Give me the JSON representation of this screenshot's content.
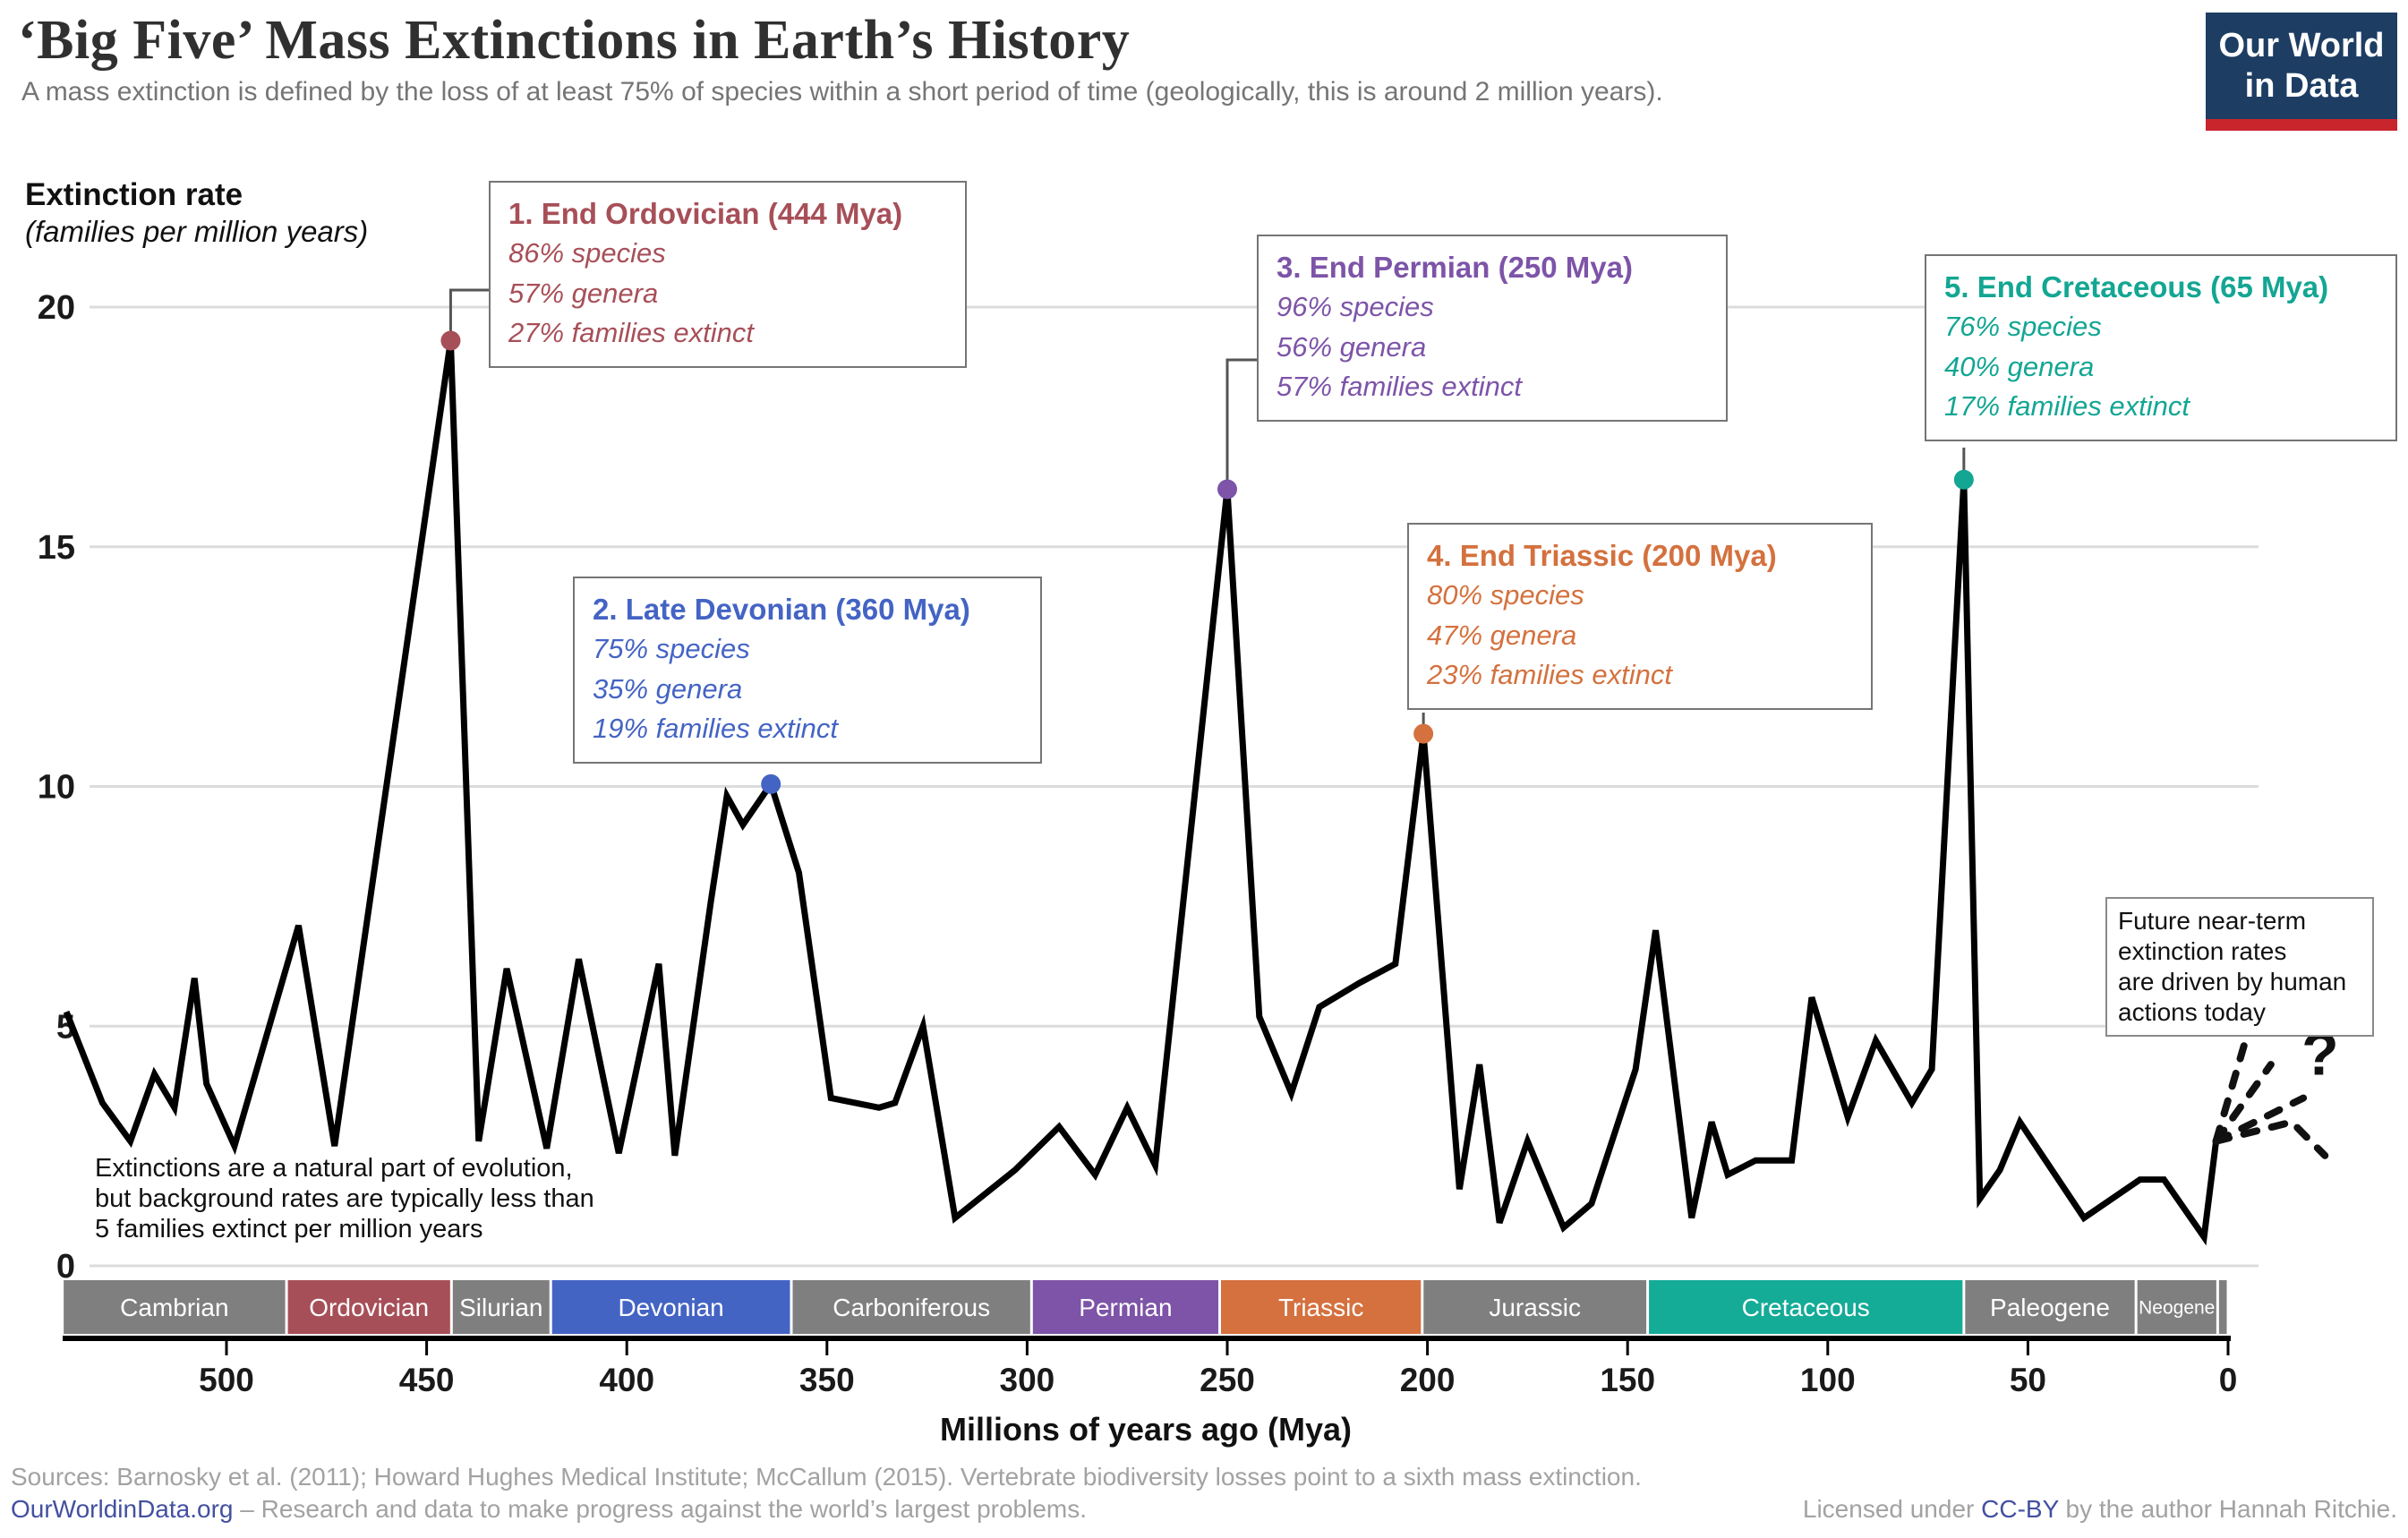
{
  "header": {
    "title": "‘Big Five’ Mass Extinctions in Earth’s History",
    "subtitle": "A mass extinction is defined by the loss of at least 75% of species within a short period of time (geologically, this is around 2 million years)."
  },
  "logo": {
    "line1": "Our World",
    "line2": "in Data",
    "bg": "#1d3d63",
    "bar": "#c9252d"
  },
  "y_axis": {
    "label_bold": "Extinction rate",
    "label_italic": "(families per million years)",
    "ticks": [
      0,
      5,
      10,
      15,
      20
    ]
  },
  "x_axis": {
    "title": "Millions of years ago (Mya)",
    "ticks": [
      500,
      450,
      400,
      350,
      300,
      250,
      200,
      150,
      100,
      50,
      0
    ]
  },
  "chart_data": {
    "type": "line",
    "title": "Extinction rate (families per million years) vs millions of years ago",
    "xlabel": "Millions of years ago (Mya)",
    "ylabel": "Extinction rate (families per million years)",
    "x_range_mya": [
      543,
      0
    ],
    "ylim": [
      0,
      20
    ],
    "grid": "horizontal",
    "line_color": "#000000",
    "grid_color": "#dcdcdc",
    "points": [
      [
        540,
        5.3
      ],
      [
        531,
        3.4
      ],
      [
        524,
        2.6
      ],
      [
        518,
        4.0
      ],
      [
        513,
        3.3
      ],
      [
        508,
        6.0
      ],
      [
        505,
        3.8
      ],
      [
        498,
        2.5
      ],
      [
        482,
        7.1
      ],
      [
        473,
        2.5
      ],
      [
        444,
        19.3
      ],
      [
        437,
        2.6
      ],
      [
        430,
        6.2
      ],
      [
        420,
        2.45
      ],
      [
        412,
        6.4
      ],
      [
        402,
        2.35
      ],
      [
        392,
        6.3
      ],
      [
        388,
        2.3
      ],
      [
        379,
        7.6
      ],
      [
        375,
        9.8
      ],
      [
        371,
        9.2
      ],
      [
        364,
        10.05
      ],
      [
        357,
        8.2
      ],
      [
        349,
        3.5
      ],
      [
        337,
        3.3
      ],
      [
        333,
        3.4
      ],
      [
        326,
        5.0
      ],
      [
        318,
        1.0
      ],
      [
        303,
        2.0
      ],
      [
        292,
        2.9
      ],
      [
        283,
        1.9
      ],
      [
        275,
        3.3
      ],
      [
        268,
        2.1
      ],
      [
        250,
        16.2
      ],
      [
        242,
        5.2
      ],
      [
        234,
        3.6
      ],
      [
        227,
        5.4
      ],
      [
        217,
        5.9
      ],
      [
        208,
        6.3
      ],
      [
        201,
        11.1
      ],
      [
        192,
        1.6
      ],
      [
        187,
        4.2
      ],
      [
        182,
        0.9
      ],
      [
        175,
        2.6
      ],
      [
        166,
        0.8
      ],
      [
        159,
        1.3
      ],
      [
        148,
        4.1
      ],
      [
        143,
        7.0
      ],
      [
        134,
        1.0
      ],
      [
        129,
        3.0
      ],
      [
        125,
        1.9
      ],
      [
        118,
        2.2
      ],
      [
        109,
        2.2
      ],
      [
        104,
        5.6
      ],
      [
        95,
        3.1
      ],
      [
        88,
        4.7
      ],
      [
        79,
        3.4
      ],
      [
        74,
        4.1
      ],
      [
        66,
        16.4
      ],
      [
        62,
        1.4
      ],
      [
        57,
        2.0
      ],
      [
        52,
        3.0
      ],
      [
        36,
        1.0
      ],
      [
        22,
        1.8
      ],
      [
        16,
        1.8
      ],
      [
        6,
        0.6
      ],
      [
        3,
        2.6
      ]
    ],
    "extinction_events": [
      {
        "label": "1. End Ordovician (444 Mya)",
        "species": "86% species",
        "genera": "57% genera",
        "families": "27% families extinct",
        "dot_mya": 444,
        "dot_rate": 19.3,
        "color": "#a74f58"
      },
      {
        "label": "2. Late Devonian (360 Mya)",
        "species": "75% species",
        "genera": "35% genera",
        "families": "19% families extinct",
        "dot_mya": 364,
        "dot_rate": 10.05,
        "color": "#4464c4"
      },
      {
        "label": "3. End Permian (250 Mya)",
        "species": "96% species",
        "genera": "56% genera",
        "families": "57% families extinct",
        "dot_mya": 250,
        "dot_rate": 16.2,
        "color": "#7d54a8"
      },
      {
        "label": "4. End Triassic (200 Mya)",
        "species": "80% species",
        "genera": "47% genera",
        "families": "23% families extinct",
        "dot_mya": 201,
        "dot_rate": 11.1,
        "color": "#d4713e"
      },
      {
        "label": "5. End Cretaceous (65 Mya)",
        "species": "76% species",
        "genera": "40% genera",
        "families": "17% families extinct",
        "dot_mya": 66,
        "dot_rate": 16.4,
        "color": "#13a693"
      }
    ],
    "future_fan": [
      [
        [
          3,
          2.6
        ],
        [
          -4,
          4.6
        ]
      ],
      [
        [
          3,
          2.6
        ],
        [
          -10.7,
          4.2
        ]
      ],
      [
        [
          3,
          2.6
        ],
        [
          -18.8,
          3.5
        ]
      ],
      [
        [
          3,
          2.6
        ],
        [
          -15.9,
          3.0
        ],
        [
          -24.2,
          2.3
        ]
      ]
    ],
    "question_mark": {
      "text": "?",
      "mya": -23,
      "rate": 4.4
    }
  },
  "periods": [
    {
      "name": "Cambrian",
      "from": 541,
      "to": 485,
      "color": "#7f7f7f",
      "font": 28
    },
    {
      "name": "Ordovician",
      "from": 485,
      "to": 443.8,
      "color": "#a74f58",
      "font": 28
    },
    {
      "name": "Silurian",
      "from": 443.8,
      "to": 419,
      "color": "#7f7f7f",
      "font": 28
    },
    {
      "name": "Devonian",
      "from": 419,
      "to": 358.9,
      "color": "#4464c4",
      "font": 28
    },
    {
      "name": "Carboniferous",
      "from": 358.9,
      "to": 298.9,
      "color": "#7f7f7f",
      "font": 28
    },
    {
      "name": "Permian",
      "from": 298.9,
      "to": 251.9,
      "color": "#7d54a8",
      "font": 28
    },
    {
      "name": "Triassic",
      "from": 251.9,
      "to": 201.3,
      "color": "#d4713e",
      "font": 28
    },
    {
      "name": "Jurassic",
      "from": 201.3,
      "to": 145,
      "color": "#7f7f7f",
      "font": 28
    },
    {
      "name": "Cretaceous",
      "from": 145,
      "to": 66,
      "color": "#14ab97",
      "font": 28
    },
    {
      "name": "Paleogene",
      "from": 66,
      "to": 23,
      "color": "#7f7f7f",
      "font": 28
    },
    {
      "name": "Neogene",
      "from": 23,
      "to": 2.6,
      "color": "#7f7f7f",
      "font": 21
    },
    {
      "name": "",
      "from": 2.6,
      "to": 0,
      "color": "#7f7f7f",
      "font": 0
    }
  ],
  "notes": {
    "background_note": [
      "Extinctions are a natural part of evolution,",
      "but background rates are typically less than",
      "5 families extinct per million years"
    ],
    "future_note": [
      "Future near-term",
      "extinction rates",
      "are driven by human",
      "actions today"
    ]
  },
  "footer": {
    "sources": "Sources: Barnosky et al. (2011); Howard Hughes Medical Institute; McCallum (2015). Vertebrate biodiversity losses point to a sixth mass extinction.",
    "owid_link": "OurWorldinData.org",
    "tagline": " – Research and data to make progress against the world’s largest problems.",
    "license_prefix": "Licensed under ",
    "license_link": "CC-BY",
    "license_suffix": " by the author Hannah Ritchie."
  }
}
